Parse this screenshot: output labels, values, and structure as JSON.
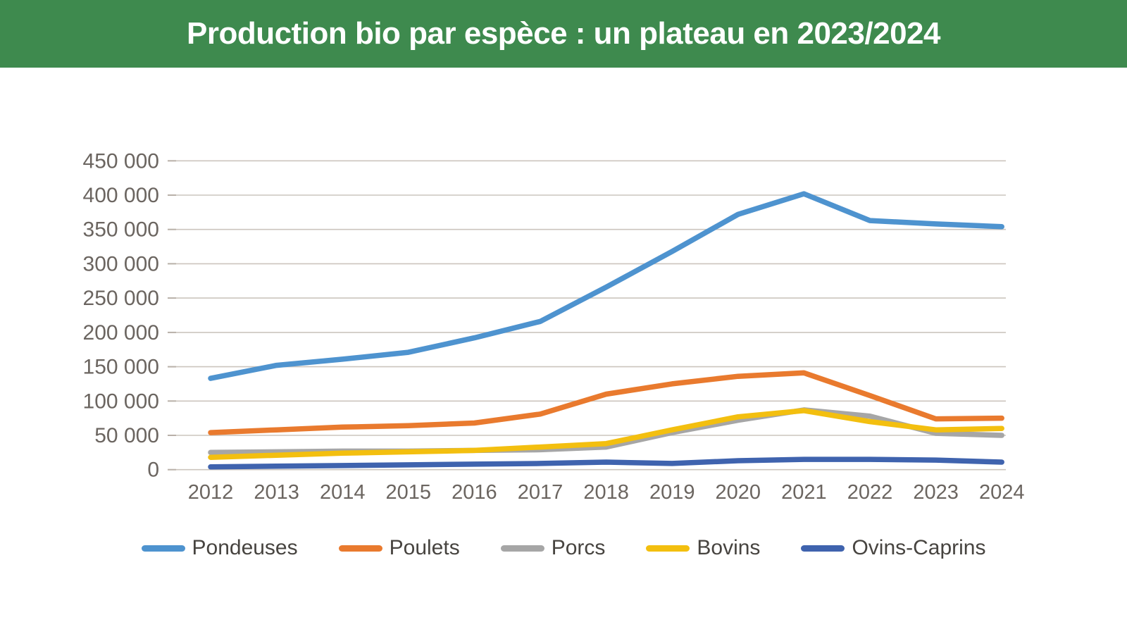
{
  "header": {
    "title": "Production bio par espèce : un plateau en 2023/2024",
    "background_color": "#3E8A4E",
    "text_color": "#FFFFFF"
  },
  "chart_data": {
    "type": "line",
    "title": "Production bio par espèce : un plateau en 2023/2024",
    "xlabel": "",
    "ylabel": "",
    "x": [
      "2012",
      "2013",
      "2014",
      "2015",
      "2016",
      "2017",
      "2018",
      "2019",
      "2020",
      "2021",
      "2022",
      "2023",
      "2024"
    ],
    "ylim": [
      0,
      450000
    ],
    "y_ticks": [
      0,
      50000,
      100000,
      150000,
      200000,
      250000,
      300000,
      350000,
      400000,
      450000
    ],
    "grid": true,
    "legend_position": "bottom",
    "grid_color": "#CCC5BE",
    "axis_label_color": "#6B6560",
    "series": [
      {
        "name": "Pondeuses",
        "color": "#4E93CF",
        "values": [
          133000,
          152000,
          161000,
          171000,
          192000,
          216000,
          266000,
          318000,
          372000,
          402000,
          363000,
          358000,
          354000
        ]
      },
      {
        "name": "Poulets",
        "color": "#E97A2E",
        "values": [
          54000,
          58000,
          62000,
          64000,
          68000,
          81000,
          110000,
          125000,
          136000,
          141000,
          108000,
          74000,
          75000
        ]
      },
      {
        "name": "Porcs",
        "color": "#A6A6A6",
        "values": [
          25000,
          26000,
          27000,
          27000,
          28000,
          29000,
          33000,
          54000,
          72000,
          87000,
          78000,
          53000,
          50000
        ]
      },
      {
        "name": "Bovins",
        "color": "#F3BF0F",
        "values": [
          18000,
          21000,
          24000,
          26000,
          28000,
          33000,
          38000,
          58000,
          77000,
          86000,
          70000,
          58000,
          60000
        ]
      },
      {
        "name": "Ovins-Caprins",
        "color": "#3F63AE",
        "values": [
          4000,
          5000,
          6000,
          7000,
          8000,
          9000,
          11000,
          9000,
          13000,
          15000,
          15000,
          14000,
          11000
        ]
      }
    ]
  }
}
